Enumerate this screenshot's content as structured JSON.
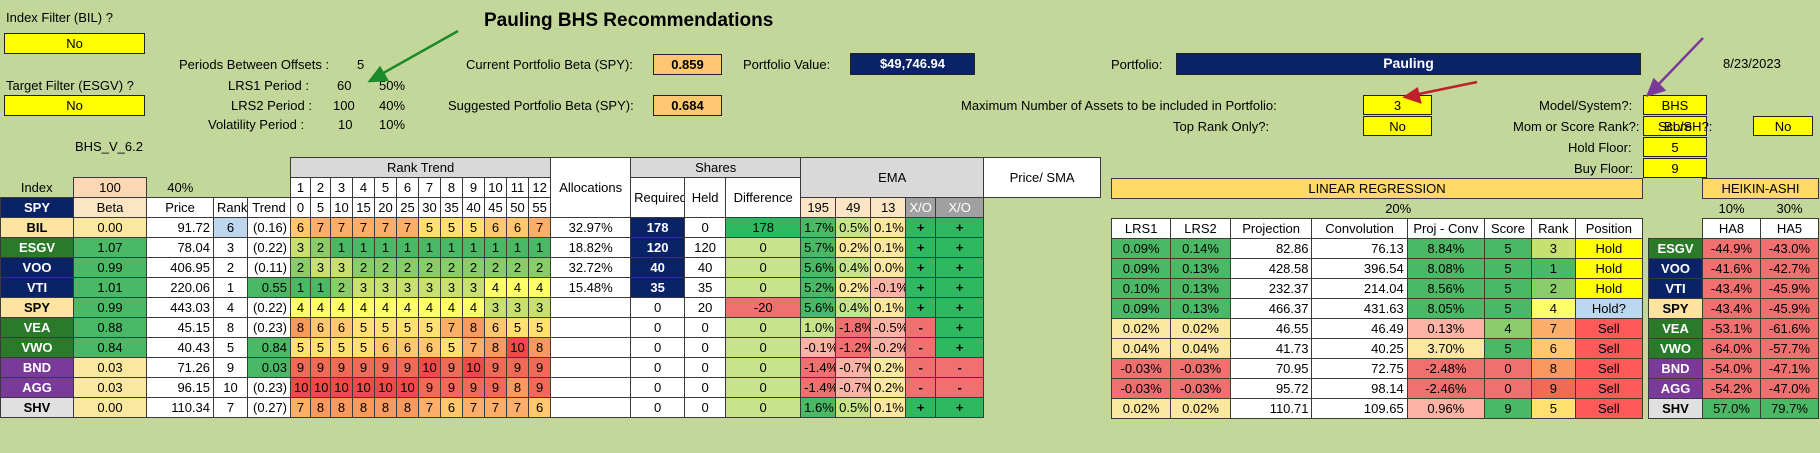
{
  "title": "Pauling BHS Recommendations",
  "date": "8/23/2023",
  "filters": {
    "index_filter_label": "Index Filter (BIL) ?",
    "index_filter_value": "No",
    "target_filter_label": "Target Filter (ESGV) ?",
    "target_filter_value": "No",
    "version": "BHS_V_6.2"
  },
  "periods": {
    "offsets_label": "Periods Between Offsets :",
    "offsets_value": "5",
    "lrs1_label": "LRS1 Period :",
    "lrs1_value": "60",
    "lrs1_pct": "50%",
    "lrs2_label": "LRS2 Period :",
    "lrs2_value": "100",
    "lrs2_pct": "40%",
    "vol_label": "Volatility Period :",
    "vol_value": "10",
    "vol_pct": "10%"
  },
  "beta": {
    "current_label": "Current Portfolio Beta (SPY):",
    "current_value": "0.859",
    "suggested_label": "Suggested Portfolio Beta (SPY):",
    "suggested_value": "0.684"
  },
  "portfolio": {
    "value_label": "Portfolio Value:",
    "value": "$49,746.94",
    "name_label": "Portfolio:",
    "name": "Pauling"
  },
  "settings": {
    "max_assets_label": "Maximum Number of Assets to be included in Portfolio:",
    "max_assets_value": "3",
    "top_rank_label": "Top Rank Only?:",
    "top_rank_value": "No",
    "model_label": "Model/System?:",
    "model_value": "BHS",
    "mom_label": "Mom or Score Rank?:",
    "mom_value": "Score",
    "hold_label": "Hold Floor:",
    "hold_value": "5",
    "buy_label": "Buy Floor:",
    "buy_value": "9",
    "blsh_label": "BL/SH?:",
    "blsh_value": "No"
  },
  "main_headers": {
    "index": "Index",
    "index_val": "100",
    "pct40": "40%",
    "spy": "SPY",
    "beta": "Beta",
    "price": "Price",
    "rank": "Rank",
    "trend": "Trend",
    "rank_trend": "Rank Trend",
    "trend_nums": [
      "1",
      "2",
      "3",
      "4",
      "5",
      "6",
      "7",
      "8",
      "9",
      "10",
      "11",
      "12"
    ],
    "trend_days": [
      "0",
      "5",
      "10",
      "15",
      "20",
      "25",
      "30",
      "35",
      "40",
      "45",
      "50",
      "55"
    ],
    "allocations": "Allocations",
    "shares": "Shares",
    "required": "Required",
    "held": "Held",
    "difference": "Difference",
    "ema": "EMA",
    "ema_periods": [
      "195",
      "49",
      "13"
    ],
    "xo": "X/O",
    "price_sma": "Price/ SMA",
    "xo2": "X/O"
  },
  "rows": [
    {
      "ticker": "BIL",
      "beta": "0.00",
      "price": "91.72",
      "rank": "6",
      "trend": "(0.16)",
      "rt": [
        "6",
        "7",
        "7",
        "7",
        "7",
        "7",
        "5",
        "5",
        "5",
        "6",
        "6",
        "7"
      ],
      "alloc": "32.97%",
      "req": "178",
      "held": "0",
      "diff": "178",
      "ema195": "1.7%",
      "ema49": "0.5%",
      "ema13": "0.1%",
      "xo": "+",
      "psma": "+"
    },
    {
      "ticker": "ESGV",
      "beta": "1.07",
      "price": "78.04",
      "rank": "3",
      "trend": "(0.22)",
      "rt": [
        "3",
        "2",
        "1",
        "1",
        "1",
        "1",
        "1",
        "1",
        "1",
        "1",
        "1",
        "1"
      ],
      "alloc": "18.82%",
      "req": "120",
      "held": "120",
      "diff": "0",
      "ema195": "5.7%",
      "ema49": "0.2%",
      "ema13": "0.1%",
      "xo": "+",
      "psma": "+"
    },
    {
      "ticker": "VOO",
      "beta": "0.99",
      "price": "406.95",
      "rank": "2",
      "trend": "(0.11)",
      "rt": [
        "2",
        "3",
        "3",
        "2",
        "2",
        "2",
        "2",
        "2",
        "2",
        "2",
        "2",
        "2"
      ],
      "alloc": "32.72%",
      "req": "40",
      "held": "40",
      "diff": "0",
      "ema195": "5.6%",
      "ema49": "0.4%",
      "ema13": "0.0%",
      "xo": "+",
      "psma": "+"
    },
    {
      "ticker": "VTI",
      "beta": "1.01",
      "price": "220.06",
      "rank": "1",
      "trend": "0.55",
      "rt": [
        "1",
        "1",
        "2",
        "3",
        "3",
        "3",
        "3",
        "3",
        "3",
        "4",
        "4",
        "4"
      ],
      "alloc": "15.48%",
      "req": "35",
      "held": "35",
      "diff": "0",
      "ema195": "5.2%",
      "ema49": "0.2%",
      "ema13": "-0.1%",
      "xo": "+",
      "psma": "+"
    },
    {
      "ticker": "SPY",
      "beta": "0.99",
      "price": "443.03",
      "rank": "4",
      "trend": "(0.22)",
      "rt": [
        "4",
        "4",
        "4",
        "4",
        "4",
        "4",
        "4",
        "4",
        "4",
        "3",
        "3",
        "3"
      ],
      "alloc": "",
      "req": "0",
      "held": "20",
      "diff": "-20",
      "ema195": "5.6%",
      "ema49": "0.4%",
      "ema13": "0.1%",
      "xo": "+",
      "psma": "+"
    },
    {
      "ticker": "VEA",
      "beta": "0.88",
      "price": "45.15",
      "rank": "8",
      "trend": "(0.23)",
      "rt": [
        "8",
        "6",
        "6",
        "5",
        "5",
        "5",
        "5",
        "7",
        "8",
        "6",
        "5",
        "5"
      ],
      "alloc": "",
      "req": "0",
      "held": "0",
      "diff": "0",
      "ema195": "1.0%",
      "ema49": "-1.8%",
      "ema13": "-0.5%",
      "xo": "-",
      "psma": "+"
    },
    {
      "ticker": "VWO",
      "beta": "0.84",
      "price": "40.43",
      "rank": "5",
      "trend": "0.84",
      "rt": [
        "5",
        "5",
        "5",
        "5",
        "6",
        "6",
        "6",
        "5",
        "7",
        "8",
        "10",
        "8"
      ],
      "alloc": "",
      "req": "0",
      "held": "0",
      "diff": "0",
      "ema195": "-0.1%",
      "ema49": "-1.2%",
      "ema13": "-0.2%",
      "xo": "-",
      "psma": "+"
    },
    {
      "ticker": "BND",
      "beta": "0.03",
      "price": "71.26",
      "rank": "9",
      "trend": "0.03",
      "rt": [
        "9",
        "9",
        "9",
        "9",
        "9",
        "9",
        "10",
        "9",
        "10",
        "9",
        "9",
        "9"
      ],
      "alloc": "",
      "req": "0",
      "held": "0",
      "diff": "0",
      "ema195": "-1.4%",
      "ema49": "-0.7%",
      "ema13": "0.2%",
      "xo": "-",
      "psma": "-"
    },
    {
      "ticker": "AGG",
      "beta": "0.03",
      "price": "96.15",
      "rank": "10",
      "trend": "(0.23)",
      "rt": [
        "10",
        "10",
        "10",
        "10",
        "10",
        "10",
        "9",
        "9",
        "9",
        "9",
        "8",
        "9"
      ],
      "alloc": "",
      "req": "0",
      "held": "0",
      "diff": "0",
      "ema195": "-1.4%",
      "ema49": "-0.7%",
      "ema13": "0.2%",
      "xo": "-",
      "psma": "-"
    },
    {
      "ticker": "SHV",
      "beta": "0.00",
      "price": "110.34",
      "rank": "7",
      "trend": "(0.27)",
      "rt": [
        "7",
        "8",
        "8",
        "8",
        "8",
        "8",
        "7",
        "6",
        "7",
        "7",
        "7",
        "6"
      ],
      "alloc": "",
      "req": "0",
      "held": "0",
      "diff": "0",
      "ema195": "1.6%",
      "ema49": "0.5%",
      "ema13": "0.1%",
      "xo": "+",
      "psma": "+"
    }
  ],
  "lr_headers": {
    "title": "LINEAR REGRESSION",
    "pct": "20%",
    "lrs1": "LRS1",
    "lrs2": "LRS2",
    "projection": "Projection",
    "convolution": "Convolution",
    "proj_conv": "Proj - Conv",
    "score": "Score",
    "rank": "Rank",
    "position": "Position"
  },
  "lr_rows": [
    {
      "lrs1": "0.09%",
      "lrs2": "0.14%",
      "proj": "82.86",
      "conv": "76.13",
      "pc": "8.84%",
      "score": "5",
      "rank": "3",
      "pos": "Hold"
    },
    {
      "lrs1": "0.09%",
      "lrs2": "0.13%",
      "proj": "428.58",
      "conv": "396.54",
      "pc": "8.08%",
      "score": "5",
      "rank": "1",
      "pos": "Hold"
    },
    {
      "lrs1": "0.10%",
      "lrs2": "0.13%",
      "proj": "232.37",
      "conv": "214.04",
      "pc": "8.56%",
      "score": "5",
      "rank": "2",
      "pos": "Hold"
    },
    {
      "lrs1": "0.09%",
      "lrs2": "0.13%",
      "proj": "466.37",
      "conv": "431.63",
      "pc": "8.05%",
      "score": "5",
      "rank": "4",
      "pos": "Hold?"
    },
    {
      "lrs1": "0.02%",
      "lrs2": "0.02%",
      "proj": "46.55",
      "conv": "46.49",
      "pc": "0.13%",
      "score": "4",
      "rank": "7",
      "pos": "Sell"
    },
    {
      "lrs1": "0.04%",
      "lrs2": "0.04%",
      "proj": "41.73",
      "conv": "40.25",
      "pc": "3.70%",
      "score": "5",
      "rank": "6",
      "pos": "Sell"
    },
    {
      "lrs1": "-0.03%",
      "lrs2": "-0.03%",
      "proj": "70.95",
      "conv": "72.75",
      "pc": "-2.48%",
      "score": "0",
      "rank": "8",
      "pos": "Sell"
    },
    {
      "lrs1": "-0.03%",
      "lrs2": "-0.03%",
      "proj": "95.72",
      "conv": "98.14",
      "pc": "-2.46%",
      "score": "0",
      "rank": "9",
      "pos": "Sell"
    },
    {
      "lrs1": "0.02%",
      "lrs2": "0.02%",
      "proj": "110.71",
      "conv": "109.65",
      "pc": "0.96%",
      "score": "9",
      "rank": "5",
      "pos": "Sell"
    }
  ],
  "ha_headers": {
    "title": "HEIKIN-ASHI",
    "pct1": "10%",
    "pct2": "30%",
    "ha8": "HA8",
    "ha5": "HA5"
  },
  "ha_rows": [
    {
      "ticker": "ESGV",
      "ha8": "-44.9%",
      "ha5": "-43.0%"
    },
    {
      "ticker": "VOO",
      "ha8": "-41.6%",
      "ha5": "-42.7%"
    },
    {
      "ticker": "VTI",
      "ha8": "-43.4%",
      "ha5": "-45.9%"
    },
    {
      "ticker": "SPY",
      "ha8": "-43.4%",
      "ha5": "-45.9%"
    },
    {
      "ticker": "VEA",
      "ha8": "-53.1%",
      "ha5": "-61.6%"
    },
    {
      "ticker": "VWO",
      "ha8": "-64.0%",
      "ha5": "-57.7%"
    },
    {
      "ticker": "BND",
      "ha8": "-54.0%",
      "ha5": "-47.1%"
    },
    {
      "ticker": "AGG",
      "ha8": "-54.2%",
      "ha5": "-47.0%"
    },
    {
      "ticker": "SHV",
      "ha8": "57.0%",
      "ha5": "79.7%"
    }
  ],
  "colors": {
    "background": "#c4d79b",
    "navy": "#0a2266",
    "input_yellow": "#ffff00",
    "beta_orange": "#ffc870",
    "green": "#2fb860",
    "red": "#f07070",
    "arrow_green": "#1a8a2a",
    "arrow_red": "#c0202a",
    "arrow_purple": "#7a3a9a"
  }
}
